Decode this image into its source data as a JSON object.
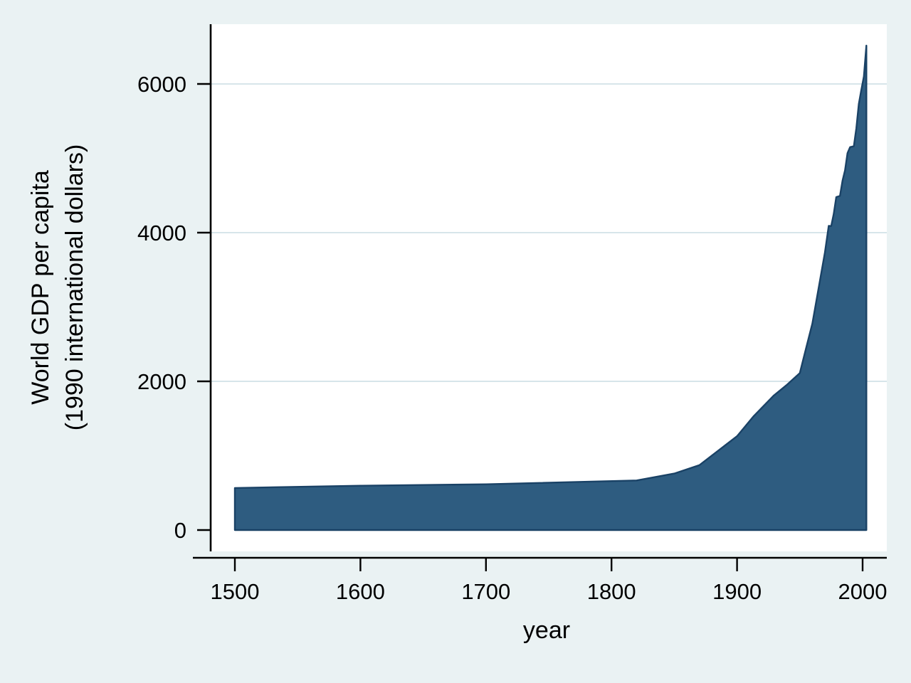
{
  "chart_data": {
    "type": "area",
    "title": "",
    "xlabel": "year",
    "ylabel_lines": [
      "World GDP per capita",
      "(1990 international dollars)"
    ],
    "xticks": [
      1500,
      1600,
      1700,
      1800,
      1900,
      2000
    ],
    "yticks": [
      0,
      2000,
      4000,
      6000
    ],
    "gridlines": [
      2000,
      4000,
      6000
    ],
    "xlim": [
      1500,
      2003
    ],
    "ylim": [
      0,
      6516
    ],
    "grid": "horizontal",
    "legend": "none",
    "series": [
      {
        "name": "World GDP per capita (1990 international dollars)",
        "x": [
          1500,
          1600,
          1700,
          1820,
          1850,
          1870,
          1900,
          1913,
          1929,
          1940,
          1950,
          1955,
          1960,
          1965,
          1970,
          1973,
          1975,
          1977,
          1979,
          1982,
          1984,
          1986,
          1988,
          1990,
          1993,
          1995,
          1997,
          1999,
          2001,
          2003
        ],
        "y": [
          566,
          596,
          615,
          667,
          760,
          873,
          1262,
          1526,
          1806,
          1958,
          2111,
          2446,
          2777,
          3258,
          3736,
          4091,
          4088,
          4250,
          4478,
          4494,
          4700,
          4838,
          5070,
          5150,
          5162,
          5404,
          5733,
          5920,
          6100,
          6516
        ]
      }
    ],
    "colors": {
      "background": "#EAF2F3",
      "plot_background": "#FFFFFF",
      "grid": "#D7E5EA",
      "area_fill": "#2E5C80",
      "area_stroke": "#1A4266",
      "axis": "#000000",
      "text": "#000000"
    }
  }
}
